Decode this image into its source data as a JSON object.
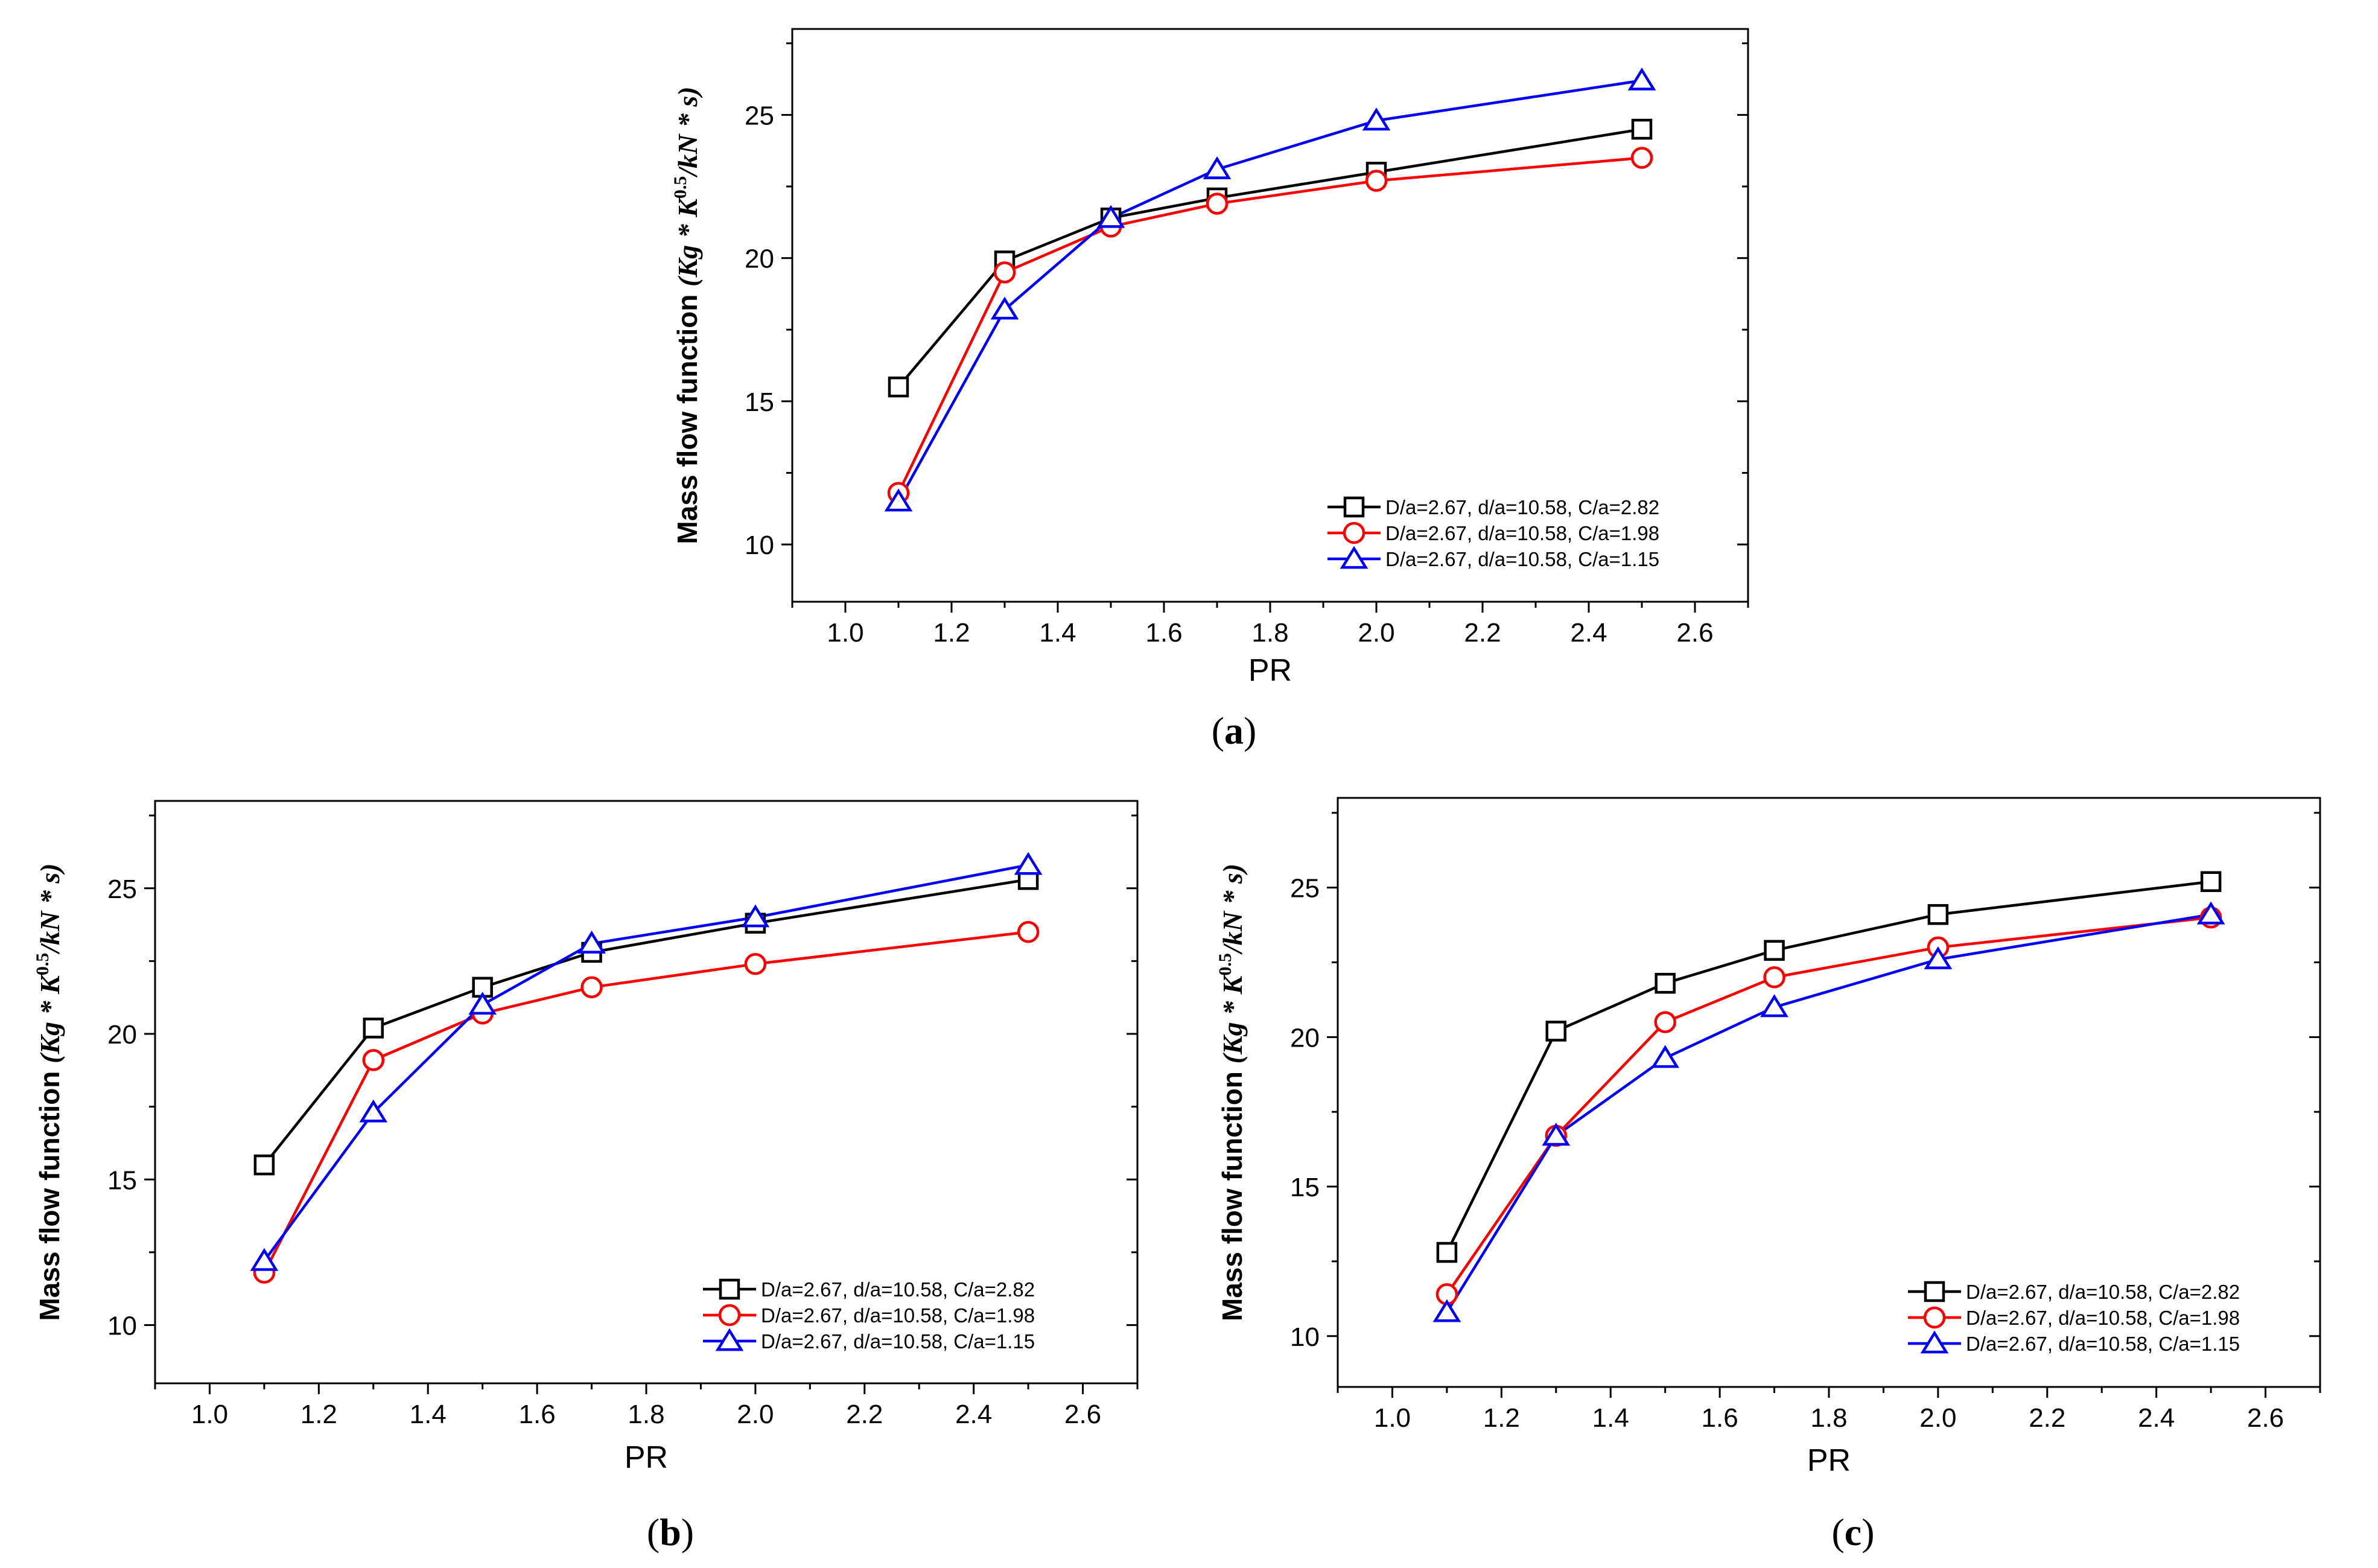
{
  "chart_data": [
    {
      "type": "line",
      "panel": "a",
      "caption_open": "(",
      "caption_letter": "a",
      "caption_close": ")",
      "xlabel": "PR",
      "ylabel_main": "Mass flow function ",
      "ylabel_unit_a": "(Kg * K",
      "ylabel_exp": "0.5",
      "ylabel_unit_b": "/kN * s)",
      "xlim": [
        0.9,
        2.7
      ],
      "ylim": [
        8,
        28
      ],
      "xticks": [
        "1.0",
        "1.2",
        "1.4",
        "1.6",
        "1.8",
        "2.0",
        "2.2",
        "2.4",
        "2.6"
      ],
      "yticks": [
        "10",
        "15",
        "20",
        "25"
      ],
      "legend_position": "bottom-right",
      "series": [
        {
          "name": "D/a=2.67, d/a=10.58, C/a=2.82",
          "color": "#000000",
          "marker": "square",
          "x": [
            1.1,
            1.3,
            1.5,
            1.7,
            2.0,
            2.5
          ],
          "values": [
            15.5,
            19.9,
            21.4,
            22.1,
            23.0,
            24.5
          ]
        },
        {
          "name": "D/a=2.67, d/a=10.58, C/a=1.98",
          "color": "#ff0000",
          "marker": "circle",
          "x": [
            1.1,
            1.3,
            1.5,
            1.7,
            2.0,
            2.5
          ],
          "values": [
            11.8,
            19.5,
            21.1,
            21.9,
            22.7,
            23.5
          ]
        },
        {
          "name": "D/a=2.67, d/a=10.58, C/a=1.15",
          "color": "#0000ff",
          "marker": "triangle",
          "x": [
            1.1,
            1.3,
            1.5,
            1.7,
            2.0,
            2.5
          ],
          "values": [
            11.5,
            18.2,
            21.4,
            23.1,
            24.8,
            26.2
          ]
        }
      ]
    },
    {
      "type": "line",
      "panel": "b",
      "caption_open": "(",
      "caption_letter": "b",
      "caption_close": ")",
      "xlabel": "PR",
      "ylabel_main": "Mass flow function ",
      "ylabel_unit_a": "(Kg * K",
      "ylabel_exp": "0.5",
      "ylabel_unit_b": "/kN * s)",
      "xlim": [
        0.9,
        2.7
      ],
      "ylim": [
        8,
        28
      ],
      "xticks": [
        "1.0",
        "1.2",
        "1.4",
        "1.6",
        "1.8",
        "2.0",
        "2.2",
        "2.4",
        "2.6"
      ],
      "yticks": [
        "10",
        "15",
        "20",
        "25"
      ],
      "legend_position": "bottom-right",
      "series": [
        {
          "name": "D/a=2.67, d/a=10.58, C/a=2.82",
          "color": "#000000",
          "marker": "square",
          "x": [
            1.1,
            1.3,
            1.5,
            1.7,
            2.0,
            2.5
          ],
          "values": [
            15.5,
            20.2,
            21.6,
            22.8,
            23.8,
            25.3
          ]
        },
        {
          "name": "D/a=2.67, d/a=10.58, C/a=1.98",
          "color": "#ff0000",
          "marker": "circle",
          "x": [
            1.1,
            1.3,
            1.5,
            1.7,
            2.0,
            2.5
          ],
          "values": [
            11.8,
            19.1,
            20.7,
            21.6,
            22.4,
            23.5
          ]
        },
        {
          "name": "D/a=2.67, d/a=10.58, C/a=1.15",
          "color": "#0000ff",
          "marker": "triangle",
          "x": [
            1.1,
            1.3,
            1.5,
            1.7,
            2.0,
            2.5
          ],
          "values": [
            12.2,
            17.3,
            21.0,
            23.1,
            24.0,
            25.8
          ]
        }
      ]
    },
    {
      "type": "line",
      "panel": "c",
      "caption_open": "(",
      "caption_letter": "c",
      "caption_close": ")",
      "xlabel": "PR",
      "ylabel_main": "Mass flow function ",
      "ylabel_unit_a": "(Kg * K",
      "ylabel_exp": "0.5",
      "ylabel_unit_b": "/kN * s)",
      "xlim": [
        0.9,
        2.7
      ],
      "ylim": [
        8.3,
        28
      ],
      "xticks": [
        "1.0",
        "1.2",
        "1.4",
        "1.6",
        "1.8",
        "2.0",
        "2.2",
        "2.4",
        "2.6"
      ],
      "yticks": [
        "10",
        "15",
        "20",
        "25"
      ],
      "legend_position": "bottom-right",
      "series": [
        {
          "name": "D/a=2.67, d/a=10.58, C/a=2.82",
          "color": "#000000",
          "marker": "square",
          "x": [
            1.1,
            1.3,
            1.5,
            1.7,
            2.0,
            2.5
          ],
          "values": [
            12.8,
            20.2,
            21.8,
            22.9,
            24.1,
            25.2
          ]
        },
        {
          "name": "D/a=2.67, d/a=10.58, C/a=1.98",
          "color": "#ff0000",
          "marker": "circle",
          "x": [
            1.1,
            1.3,
            1.5,
            1.7,
            2.0,
            2.5
          ],
          "values": [
            11.4,
            16.7,
            20.5,
            22.0,
            23.0,
            24.0
          ]
        },
        {
          "name": "D/a=2.67, d/a=10.58, C/a=1.15",
          "color": "#0000ff",
          "marker": "triangle",
          "x": [
            1.1,
            1.3,
            1.5,
            1.7,
            2.0,
            2.5
          ],
          "values": [
            10.8,
            16.7,
            19.3,
            21.0,
            22.6,
            24.1
          ]
        }
      ]
    }
  ]
}
